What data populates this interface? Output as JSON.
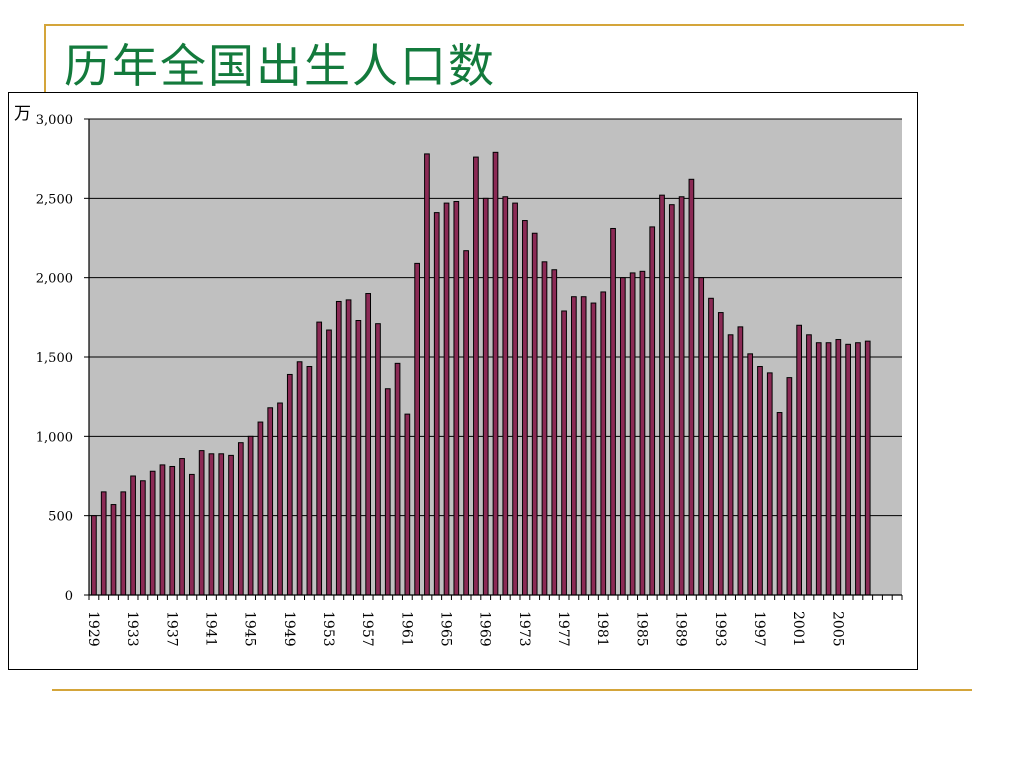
{
  "slide": {
    "title": "历年全国出生人口数",
    "accent_color": "#d4a53a",
    "title_color": "#137a3c"
  },
  "chart_data": {
    "type": "bar",
    "title": "历年全国出生人口数",
    "ylabel": "万",
    "xlabel": "",
    "ylim": [
      0,
      3000
    ],
    "yticks": [
      0,
      500,
      1000,
      1500,
      2000,
      2500,
      3000
    ],
    "ytick_labels": [
      "0",
      "500",
      "1,000",
      "1,500",
      "2,000",
      "2,500",
      "3,000"
    ],
    "x_label_years": [
      1929,
      1933,
      1937,
      1941,
      1945,
      1949,
      1953,
      1957,
      1961,
      1965,
      1969,
      1973,
      1977,
      1981,
      1985,
      1989,
      1993,
      1997,
      2001,
      2005
    ],
    "empty_trailing_categories": 3,
    "grid": true,
    "legend": "none",
    "bar_color": "#8b2a55",
    "plot_background": "#c0c0c0",
    "categories": [
      1929,
      1930,
      1931,
      1932,
      1933,
      1934,
      1935,
      1936,
      1937,
      1938,
      1939,
      1940,
      1941,
      1942,
      1943,
      1944,
      1945,
      1946,
      1947,
      1948,
      1949,
      1950,
      1951,
      1952,
      1953,
      1954,
      1955,
      1956,
      1957,
      1958,
      1959,
      1960,
      1961,
      1962,
      1963,
      1964,
      1965,
      1966,
      1967,
      1968,
      1969,
      1970,
      1971,
      1972,
      1973,
      1974,
      1975,
      1976,
      1977,
      1978,
      1979,
      1980,
      1981,
      1982,
      1983,
      1984,
      1985,
      1986,
      1987,
      1988,
      1989,
      1990,
      1991,
      1992,
      1993,
      1994,
      1995,
      1996,
      1997,
      1998,
      1999,
      2000,
      2001,
      2002,
      2003,
      2004,
      2005,
      2006,
      2007,
      2008
    ],
    "values": [
      500,
      650,
      570,
      650,
      750,
      720,
      780,
      820,
      810,
      860,
      760,
      910,
      890,
      890,
      880,
      960,
      1000,
      1090,
      1180,
      1210,
      1390,
      1470,
      1440,
      1720,
      1670,
      1850,
      1860,
      1730,
      1900,
      1710,
      1300,
      1460,
      1140,
      2090,
      2780,
      2410,
      2470,
      2480,
      2170,
      2760,
      2500,
      2790,
      2510,
      2470,
      2360,
      2280,
      2100,
      2050,
      1790,
      1880,
      1880,
      1840,
      1910,
      2310,
      2000,
      2030,
      2040,
      2320,
      2520,
      2460,
      2510,
      2620,
      2000,
      1870,
      1780,
      1640,
      1690,
      1520,
      1440,
      1400,
      1150,
      1370,
      1700,
      1640,
      1590,
      1590,
      1610,
      1580,
      1590,
      1600
    ]
  }
}
